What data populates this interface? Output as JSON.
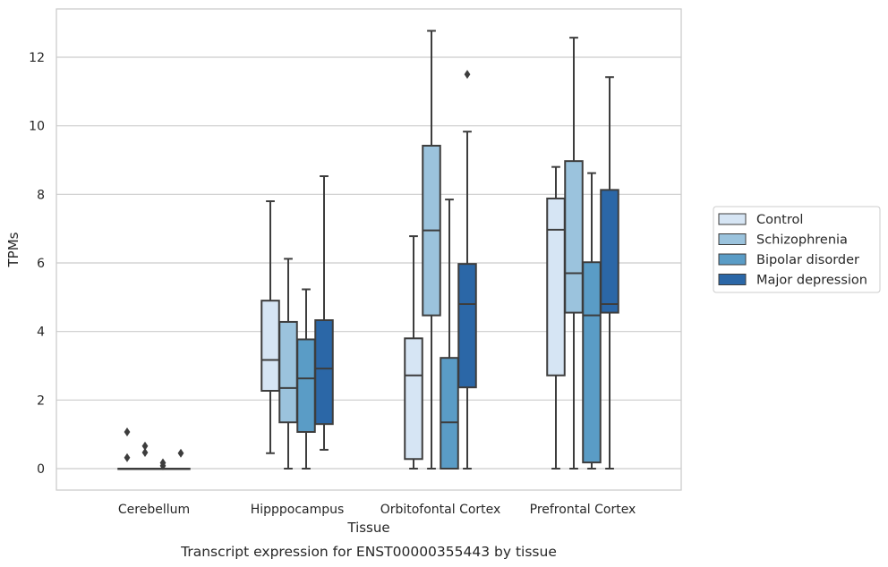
{
  "chart_data": {
    "type": "box",
    "caption": "Transcript expression for ENST00000355443 by tissue",
    "xlabel": "Tissue",
    "ylabel": "TPMs",
    "ylim": [
      -0.6,
      13.4
    ],
    "yticks": [
      0,
      2,
      4,
      6,
      8,
      10,
      12
    ],
    "grid": true,
    "legend_position": "right",
    "categories": [
      "Cerebellum",
      "Hipppocampus",
      "Orbitofontal Cortex",
      "Prefrontal Cortex"
    ],
    "series": [
      {
        "name": "Control",
        "color": "#d6e5f4",
        "boxes": [
          {
            "q1": 0.0,
            "median": 0.0,
            "q3": 0.0,
            "whisker_low": 0.0,
            "whisker_high": 0.0,
            "outliers": [
              0.32,
              1.07
            ]
          },
          {
            "q1": 2.27,
            "median": 3.17,
            "q3": 4.9,
            "whisker_low": 0.45,
            "whisker_high": 7.8,
            "outliers": []
          },
          {
            "q1": 0.28,
            "median": 2.72,
            "q3": 3.8,
            "whisker_low": 0.0,
            "whisker_high": 6.78,
            "outliers": []
          },
          {
            "q1": 2.72,
            "median": 6.97,
            "q3": 7.88,
            "whisker_low": 0.0,
            "whisker_high": 8.8,
            "outliers": []
          }
        ]
      },
      {
        "name": "Schizophrenia",
        "color": "#9bc3dd",
        "boxes": [
          {
            "q1": 0.0,
            "median": 0.0,
            "q3": 0.0,
            "whisker_low": 0.0,
            "whisker_high": 0.0,
            "outliers": [
              0.47,
              0.66
            ]
          },
          {
            "q1": 1.35,
            "median": 2.35,
            "q3": 4.28,
            "whisker_low": 0.0,
            "whisker_high": 6.12,
            "outliers": []
          },
          {
            "q1": 4.47,
            "median": 6.95,
            "q3": 9.42,
            "whisker_low": 0.0,
            "whisker_high": 12.77,
            "outliers": []
          },
          {
            "q1": 4.55,
            "median": 5.7,
            "q3": 8.97,
            "whisker_low": 0.0,
            "whisker_high": 12.57,
            "outliers": []
          }
        ]
      },
      {
        "name": "Bipolar disorder",
        "color": "#5a9cc6",
        "boxes": [
          {
            "q1": 0.0,
            "median": 0.0,
            "q3": 0.0,
            "whisker_low": 0.0,
            "whisker_high": 0.0,
            "outliers": [
              0.08,
              0.17
            ]
          },
          {
            "q1": 1.07,
            "median": 2.63,
            "q3": 3.77,
            "whisker_low": 0.0,
            "whisker_high": 5.23,
            "outliers": []
          },
          {
            "q1": 0.0,
            "median": 1.35,
            "q3": 3.23,
            "whisker_low": 0.0,
            "whisker_high": 7.85,
            "outliers": []
          },
          {
            "q1": 0.18,
            "median": 4.47,
            "q3": 6.02,
            "whisker_low": 0.0,
            "whisker_high": 8.62,
            "outliers": []
          }
        ]
      },
      {
        "name": "Major depression",
        "color": "#2b67a7",
        "boxes": [
          {
            "q1": 0.0,
            "median": 0.0,
            "q3": 0.0,
            "whisker_low": 0.0,
            "whisker_high": 0.0,
            "outliers": [
              0.45
            ]
          },
          {
            "q1": 1.3,
            "median": 2.92,
            "q3": 4.33,
            "whisker_low": 0.55,
            "whisker_high": 8.53,
            "outliers": []
          },
          {
            "q1": 2.37,
            "median": 4.8,
            "q3": 5.97,
            "whisker_low": 0.0,
            "whisker_high": 9.83,
            "outliers": [
              11.5
            ]
          },
          {
            "q1": 4.55,
            "median": 4.8,
            "q3": 8.13,
            "whisker_low": 0.0,
            "whisker_high": 11.42,
            "outliers": []
          }
        ]
      }
    ]
  }
}
